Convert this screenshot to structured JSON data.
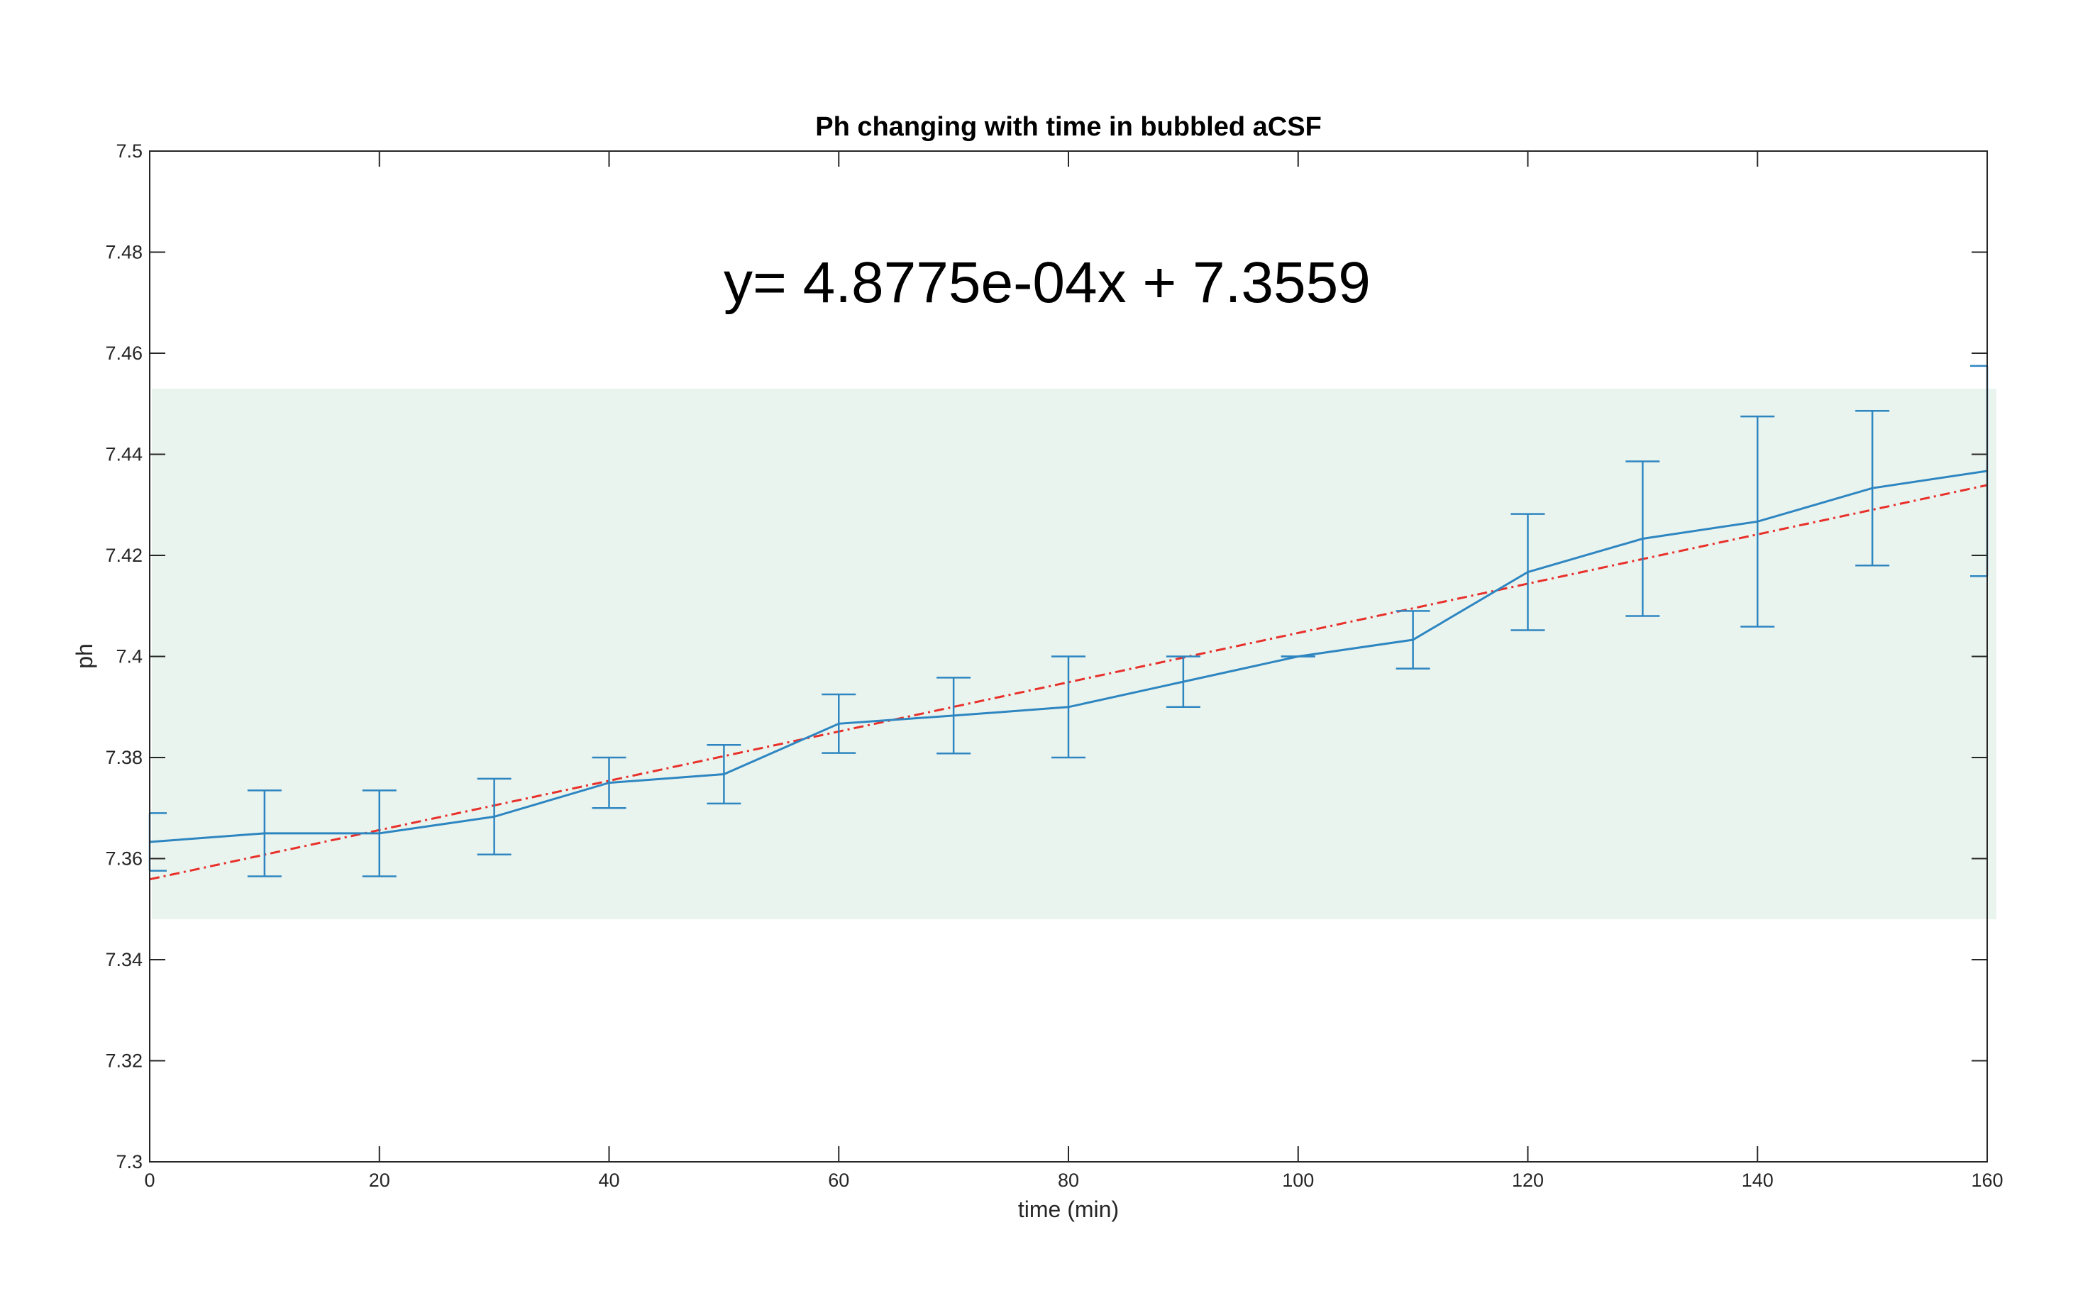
{
  "chart_data": {
    "type": "line",
    "title": "Ph changing with time in bubbled aCSF",
    "xlabel": "time (min)",
    "ylabel": "ph",
    "xlim": [
      0,
      160
    ],
    "ylim": [
      7.3,
      7.5
    ],
    "x_ticks": [
      "0",
      "20",
      "40",
      "60",
      "80",
      "100",
      "120",
      "140",
      "160"
    ],
    "y_ticks": [
      "7.3",
      "7.32",
      "7.34",
      "7.36",
      "7.38",
      "7.4",
      "7.42",
      "7.44",
      "7.46",
      "7.48",
      "7.5"
    ],
    "annotation": "y= 4.8775e-04x +  7.3559",
    "band": {
      "y_low": 7.348,
      "y_high": 7.453,
      "color": "#eaf4ef"
    },
    "series": [
      {
        "type": "errorbar-line",
        "color": "#2e86c1",
        "x": [
          0,
          10,
          20,
          30,
          40,
          50,
          60,
          70,
          80,
          90,
          100,
          110,
          120,
          130,
          140,
          150,
          160
        ],
        "y": [
          7.3633,
          7.365,
          7.365,
          7.3683,
          7.375,
          7.3767,
          7.3867,
          7.3883,
          7.39,
          7.395,
          7.4,
          7.4033,
          7.4167,
          7.4233,
          7.4267,
          7.4333,
          7.4367
        ],
        "err": [
          0.0057,
          0.0085,
          0.0085,
          0.0075,
          0.005,
          0.0058,
          0.0058,
          0.0075,
          0.01,
          0.005,
          0.0,
          0.0057,
          0.0115,
          0.0153,
          0.0208,
          0.0153,
          0.0208
        ]
      },
      {
        "type": "fit-line",
        "color": "#e8302a",
        "x": [
          0,
          160
        ],
        "y": [
          7.3559,
          7.4339
        ]
      }
    ]
  }
}
